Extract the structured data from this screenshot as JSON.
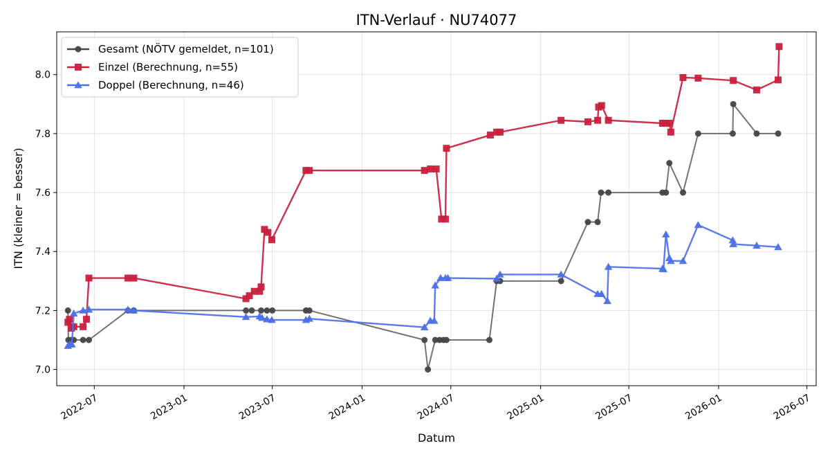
{
  "chart_data": {
    "type": "line",
    "title": "ITN-Verlauf · NU74077",
    "xlabel": "Datum",
    "ylabel": "ITN  (kleiner = besser)",
    "x_type": "date",
    "xlim": [
      "2022-04-15",
      "2026-07-20"
    ],
    "ylim": [
      6.945,
      8.145
    ],
    "x_ticks": [
      "2022-07-01",
      "2023-01-01",
      "2023-07-01",
      "2024-01-01",
      "2024-07-01",
      "2025-01-01",
      "2025-07-01",
      "2026-01-01",
      "2026-07-01"
    ],
    "x_tick_labels": [
      "2022-07",
      "2023-01",
      "2023-07",
      "2024-01",
      "2024-07",
      "2025-01",
      "2025-07",
      "2026-01",
      "2026-07"
    ],
    "y_ticks": [
      7.0,
      7.2,
      7.4,
      7.6,
      7.8,
      8.0
    ],
    "y_tick_labels": [
      "7.0",
      "7.2",
      "7.4",
      "7.6",
      "7.8",
      "8.0"
    ],
    "grid": true,
    "legend_position": "top-left",
    "series": [
      {
        "name": "Gesamt (NÖTV gemeldet, n=101)",
        "color": "#444444",
        "marker": "circle",
        "points": [
          [
            "2022-05-08",
            7.2
          ],
          [
            "2022-05-09",
            7.1
          ],
          [
            "2022-05-15",
            7.1
          ],
          [
            "2022-05-20",
            7.1
          ],
          [
            "2022-06-08",
            7.1
          ],
          [
            "2022-06-20",
            7.1
          ],
          [
            "2022-09-08",
            7.2
          ],
          [
            "2022-09-20",
            7.2
          ],
          [
            "2023-05-08",
            7.2
          ],
          [
            "2023-05-20",
            7.2
          ],
          [
            "2023-06-08",
            7.2
          ],
          [
            "2023-06-20",
            7.2
          ],
          [
            "2023-07-01",
            7.2
          ],
          [
            "2023-09-08",
            7.2
          ],
          [
            "2023-09-15",
            7.2
          ],
          [
            "2024-05-08",
            7.1
          ],
          [
            "2024-05-15",
            7.0
          ],
          [
            "2024-05-30",
            7.1
          ],
          [
            "2024-06-08",
            7.1
          ],
          [
            "2024-06-16",
            7.1
          ],
          [
            "2024-06-22",
            7.1
          ],
          [
            "2024-09-18",
            7.1
          ],
          [
            "2024-10-03",
            7.3
          ],
          [
            "2024-10-10",
            7.3
          ],
          [
            "2025-02-12",
            7.3
          ],
          [
            "2025-04-08",
            7.5
          ],
          [
            "2025-04-28",
            7.5
          ],
          [
            "2025-05-05",
            7.6
          ],
          [
            "2025-05-20",
            7.6
          ],
          [
            "2025-09-08",
            7.6
          ],
          [
            "2025-09-15",
            7.6
          ],
          [
            "2025-09-22",
            7.7
          ],
          [
            "2025-10-20",
            7.6
          ],
          [
            "2025-11-20",
            7.8
          ],
          [
            "2026-01-30",
            7.8
          ],
          [
            "2026-01-31",
            7.9
          ],
          [
            "2026-03-20",
            7.8
          ],
          [
            "2026-05-03",
            7.8
          ]
        ]
      },
      {
        "name": "Einzel (Berechnung, n=55)",
        "color": "#c8203c",
        "marker": "square",
        "points": [
          [
            "2022-05-08",
            7.16
          ],
          [
            "2022-05-11",
            7.17
          ],
          [
            "2022-05-15",
            7.14
          ],
          [
            "2022-05-20",
            7.145
          ],
          [
            "2022-06-08",
            7.145
          ],
          [
            "2022-06-15",
            7.17
          ],
          [
            "2022-06-20",
            7.31
          ],
          [
            "2022-09-08",
            7.31
          ],
          [
            "2022-09-20",
            7.31
          ],
          [
            "2023-05-08",
            7.24
          ],
          [
            "2023-05-15",
            7.25
          ],
          [
            "2023-05-25",
            7.265
          ],
          [
            "2023-06-05",
            7.265
          ],
          [
            "2023-06-08",
            7.28
          ],
          [
            "2023-06-15",
            7.475
          ],
          [
            "2023-06-22",
            7.465
          ],
          [
            "2023-06-30",
            7.44
          ],
          [
            "2023-09-08",
            7.675
          ],
          [
            "2023-09-15",
            7.675
          ],
          [
            "2024-05-08",
            7.675
          ],
          [
            "2024-05-20",
            7.68
          ],
          [
            "2024-06-01",
            7.68
          ],
          [
            "2024-06-12",
            7.51
          ],
          [
            "2024-06-20",
            7.51
          ],
          [
            "2024-06-22",
            7.75
          ],
          [
            "2024-09-20",
            7.795
          ],
          [
            "2024-10-03",
            7.805
          ],
          [
            "2024-10-10",
            7.805
          ],
          [
            "2025-02-12",
            7.845
          ],
          [
            "2025-04-08",
            7.84
          ],
          [
            "2025-04-28",
            7.845
          ],
          [
            "2025-04-30",
            7.89
          ],
          [
            "2025-05-06",
            7.895
          ],
          [
            "2025-05-20",
            7.845
          ],
          [
            "2025-09-08",
            7.835
          ],
          [
            "2025-09-15",
            7.835
          ],
          [
            "2025-09-22",
            7.835
          ],
          [
            "2025-09-25",
            7.805
          ],
          [
            "2025-10-20",
            7.99
          ],
          [
            "2025-11-20",
            7.988
          ],
          [
            "2026-01-31",
            7.98
          ],
          [
            "2026-03-20",
            7.948
          ],
          [
            "2026-05-03",
            7.982
          ],
          [
            "2026-05-05",
            8.095
          ]
        ]
      },
      {
        "name": "Doppel (Berechnung, n=46)",
        "color": "#4d6fe9",
        "marker": "triangle",
        "points": [
          [
            "2022-05-08",
            7.08
          ],
          [
            "2022-05-12",
            7.085
          ],
          [
            "2022-05-16",
            7.085
          ],
          [
            "2022-05-20",
            7.19
          ],
          [
            "2022-06-08",
            7.2
          ],
          [
            "2022-06-20",
            7.203
          ],
          [
            "2022-09-08",
            7.203
          ],
          [
            "2022-09-20",
            7.2
          ],
          [
            "2023-05-08",
            7.178
          ],
          [
            "2023-06-05",
            7.18
          ],
          [
            "2023-06-10",
            7.175
          ],
          [
            "2023-06-20",
            7.17
          ],
          [
            "2023-06-30",
            7.168
          ],
          [
            "2023-09-08",
            7.168
          ],
          [
            "2023-09-15",
            7.172
          ],
          [
            "2024-05-08",
            7.143
          ],
          [
            "2024-05-20",
            7.165
          ],
          [
            "2024-05-28",
            7.165
          ],
          [
            "2024-05-30",
            7.285
          ],
          [
            "2024-06-10",
            7.31
          ],
          [
            "2024-06-20",
            7.31
          ],
          [
            "2024-06-25",
            7.31
          ],
          [
            "2024-10-03",
            7.308
          ],
          [
            "2024-10-10",
            7.322
          ],
          [
            "2025-02-12",
            7.322
          ],
          [
            "2025-04-28",
            7.256
          ],
          [
            "2025-05-06",
            7.256
          ],
          [
            "2025-05-18",
            7.232
          ],
          [
            "2025-05-20",
            7.348
          ],
          [
            "2025-09-08",
            7.342
          ],
          [
            "2025-09-10",
            7.34
          ],
          [
            "2025-09-15",
            7.458
          ],
          [
            "2025-09-22",
            7.378
          ],
          [
            "2025-09-25",
            7.368
          ],
          [
            "2025-10-20",
            7.368
          ],
          [
            "2025-11-20",
            7.49
          ],
          [
            "2026-01-30",
            7.438
          ],
          [
            "2026-01-31",
            7.425
          ],
          [
            "2026-03-20",
            7.42
          ],
          [
            "2026-05-03",
            7.415
          ]
        ]
      }
    ]
  }
}
